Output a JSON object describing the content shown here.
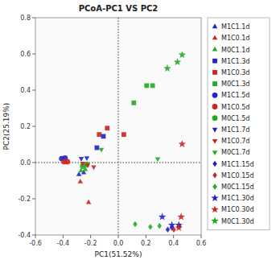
{
  "chart_data": {
    "type": "scatter",
    "title": "PCoA-PC1 VS PC2",
    "xlabel": "PC1(51.52%)",
    "ylabel": "PC2(25.19%)",
    "xlim": [
      -0.6,
      0.6
    ],
    "ylim": [
      -0.4,
      0.8
    ],
    "xticks": [
      -0.6,
      -0.4,
      -0.2,
      {
        "value": 0.0,
        "label": "0.0"
      },
      0.2,
      0.4,
      0.6
    ],
    "yticks": [
      -0.4,
      -0.2,
      {
        "value": 0.0,
        "label": "0.0"
      },
      0.2,
      0.4,
      0.6,
      0.8
    ],
    "xlines": [
      0
    ],
    "ylines": [
      0
    ],
    "grid": false,
    "legend": "right",
    "series": [
      {
        "name": "M1C1.1d",
        "color": "#2222cc",
        "marker": "triangle-up",
        "x": [
          -0.285,
          -0.25
        ],
        "values": [
          -0.065,
          -0.055
        ]
      },
      {
        "name": "M1C0.1d",
        "color": "#cc2222",
        "marker": "triangle-up",
        "x": [
          -0.275,
          -0.215
        ],
        "values": [
          -0.105,
          -0.22
        ]
      },
      {
        "name": "M0C1.1d",
        "color": "#22aa22",
        "marker": "triangle-up",
        "x": [
          -0.27,
          -0.238
        ],
        "values": [
          -0.045,
          -0.038
        ]
      },
      {
        "name": "M1C1.3d",
        "color": "#2222cc",
        "marker": "square",
        "x": [
          -0.155,
          -0.108
        ],
        "values": [
          0.082,
          0.145
        ]
      },
      {
        "name": "M1C0.3d",
        "color": "#cc2222",
        "marker": "square",
        "x": [
          -0.138,
          -0.08,
          0.04
        ],
        "values": [
          0.155,
          0.19,
          0.155
        ]
      },
      {
        "name": "M0C1.3d",
        "color": "#22aa22",
        "marker": "square",
        "x": [
          0.112,
          0.205,
          0.248
        ],
        "values": [
          0.33,
          0.425,
          0.425
        ]
      },
      {
        "name": "M1C1.5d",
        "color": "#2222cc",
        "marker": "circle",
        "x": [
          -0.41,
          -0.385
        ],
        "values": [
          0.022,
          0.025
        ]
      },
      {
        "name": "M1C0.5d",
        "color": "#cc2222",
        "marker": "circle",
        "x": [
          -0.392,
          -0.368
        ],
        "values": [
          0.005,
          0.005
        ]
      },
      {
        "name": "M0C1.5d",
        "color": "#22aa22",
        "marker": "circle",
        "x": [
          -0.258,
          -0.228
        ],
        "values": [
          -0.02,
          -0.01
        ]
      },
      {
        "name": "M1C1.7d",
        "color": "#2222cc",
        "marker": "triangle-down",
        "x": [
          -0.268,
          -0.228
        ],
        "values": [
          0.022,
          0.025
        ]
      },
      {
        "name": "M1C0.7d",
        "color": "#cc2222",
        "marker": "triangle-down",
        "x": [
          -0.258,
          -0.222,
          -0.178
        ],
        "values": [
          -0.005,
          -0.015,
          -0.025
        ]
      },
      {
        "name": "M0C1.7d",
        "color": "#22aa22",
        "marker": "triangle-down",
        "x": [
          -0.122,
          0.285
        ],
        "values": [
          0.072,
          0.02
        ]
      },
      {
        "name": "M1C1.15d",
        "color": "#2222cc",
        "marker": "diamond",
        "x": [
          0.358,
          0.388
        ],
        "values": [
          -0.37,
          -0.36
        ]
      },
      {
        "name": "M1C0.15d",
        "color": "#cc2222",
        "marker": "diamond",
        "x": [
          0.402,
          0.442
        ],
        "values": [
          -0.37,
          -0.35
        ]
      },
      {
        "name": "M0C1.15d",
        "color": "#22aa22",
        "marker": "diamond",
        "x": [
          0.122,
          0.232,
          0.298
        ],
        "values": [
          -0.34,
          -0.355,
          -0.35
        ]
      },
      {
        "name": "M1C1.30d",
        "color": "#2222cc",
        "marker": "star",
        "x": [
          0.318,
          0.388,
          0.438
        ],
        "values": [
          -0.3,
          -0.345,
          -0.345
        ]
      },
      {
        "name": "M1C0.30d",
        "color": "#cc2222",
        "marker": "star",
        "x": [
          0.438,
          0.455,
          0.462
        ],
        "values": [
          -0.36,
          -0.3,
          0.102
        ]
      },
      {
        "name": "M0C1.30d",
        "color": "#22aa22",
        "marker": "star",
        "x": [
          0.355,
          0.428,
          0.462
        ],
        "values": [
          0.52,
          0.555,
          0.595
        ]
      }
    ]
  }
}
